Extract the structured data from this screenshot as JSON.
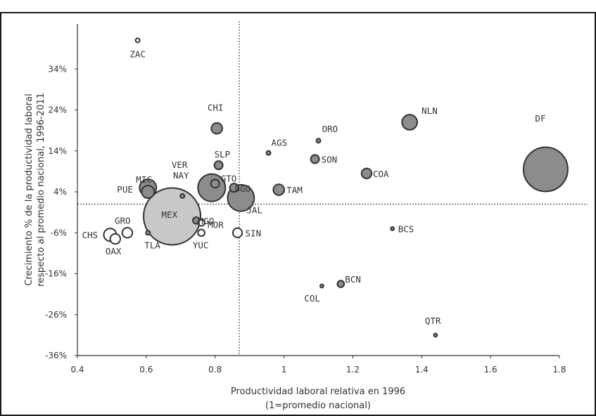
{
  "chart_data": {
    "type": "scatter",
    "title": "",
    "xlabel": [
      "Productividad laboral relativa en 1996",
      "(1=promedio nacional)"
    ],
    "ylabel": [
      "Crecimiento % de la productividad laboral",
      "respecto al promedio nacional, 1996-2011"
    ],
    "xlim": [
      0.4,
      1.8
    ],
    "ylim": [
      -36,
      44
    ],
    "x_ticks": [
      {
        "value": 0.4,
        "label": "0.4"
      },
      {
        "value": 0.6,
        "label": "0.6"
      },
      {
        "value": 0.8,
        "label": "0.8"
      },
      {
        "value": 1.0,
        "label": "1"
      },
      {
        "value": 1.2,
        "label": "1.2"
      },
      {
        "value": 1.4,
        "label": "1.4"
      },
      {
        "value": 1.6,
        "label": "1.6"
      },
      {
        "value": 1.8,
        "label": "1.8"
      }
    ],
    "y_ticks": [
      {
        "value": 34,
        "label": "34%"
      },
      {
        "value": 24,
        "label": "24%"
      },
      {
        "value": 14,
        "label": "14%"
      },
      {
        "value": 4,
        "label": "4%"
      },
      {
        "value": -6,
        "label": "-6%"
      },
      {
        "value": -16,
        "label": "-16%"
      },
      {
        "value": -26,
        "label": "-26%"
      },
      {
        "value": -36,
        "label": "-36%"
      }
    ],
    "reference_lines": {
      "x": 0.87,
      "y": 1.0
    },
    "colors": {
      "fill": "#8c8c8c",
      "light_fill": "#c8c8c8",
      "outline": "#333333",
      "ref": "#555555"
    },
    "points": [
      {
        "label": "ZAC",
        "x": 0.575,
        "y": 41.0,
        "size": 1,
        "style": "hollow"
      },
      {
        "label": "CHI",
        "x": 0.805,
        "y": 19.5,
        "size": 2.6
      },
      {
        "label": "NLN",
        "x": 1.365,
        "y": 21.0,
        "size": 3.6
      },
      {
        "label": "ORO",
        "x": 1.1,
        "y": 16.5,
        "size": 1
      },
      {
        "label": "AGS",
        "x": 0.955,
        "y": 13.5,
        "size": 1
      },
      {
        "label": "SON",
        "x": 1.09,
        "y": 12.0,
        "size": 2
      },
      {
        "label": "SLP",
        "x": 0.81,
        "y": 10.5,
        "size": 2
      },
      {
        "label": "COA",
        "x": 1.24,
        "y": 8.5,
        "size": 2.4
      },
      {
        "label": "DF",
        "x": 1.76,
        "y": 9.5,
        "size": 10.5
      },
      {
        "label": "MIC",
        "x": 0.605,
        "y": 5.0,
        "size": 4
      },
      {
        "label": "PUE",
        "x": 0.605,
        "y": 4.0,
        "size": 3
      },
      {
        "label": "VER",
        "x": 0.79,
        "y": 5.0,
        "size": 6.5
      },
      {
        "label": "GTO",
        "x": 0.8,
        "y": 6.0,
        "size": 2
      },
      {
        "label": "DGO",
        "x": 0.855,
        "y": 5.0,
        "size": 2
      },
      {
        "label": "JAL",
        "x": 0.875,
        "y": 2.5,
        "size": 6.3
      },
      {
        "label": "TAM",
        "x": 0.985,
        "y": 4.5,
        "size": 2.6
      },
      {
        "label": "NAY",
        "x": 0.705,
        "y": 3.0,
        "size": 1
      },
      {
        "label": "MEX",
        "x": 0.675,
        "y": -2.0,
        "size": 13.5,
        "style": "light"
      },
      {
        "label": "HGO",
        "x": 0.745,
        "y": -3.0,
        "size": 1.6
      },
      {
        "label": "MOR",
        "x": 0.76,
        "y": -3.5,
        "size": 1.6,
        "style": "hollow"
      },
      {
        "label": "YUC",
        "x": 0.76,
        "y": -6.0,
        "size": 1.6,
        "style": "hollow"
      },
      {
        "label": "SIN",
        "x": 0.865,
        "y": -6.0,
        "size": 2.2,
        "style": "hollow"
      },
      {
        "label": "CHS",
        "x": 0.495,
        "y": -6.5,
        "size": 3,
        "style": "hollow"
      },
      {
        "label": "GRO",
        "x": 0.545,
        "y": -6.0,
        "size": 2.4,
        "style": "hollow"
      },
      {
        "label": "OAX",
        "x": 0.51,
        "y": -7.5,
        "size": 2.4,
        "style": "hollow"
      },
      {
        "label": "TLA",
        "x": 0.605,
        "y": -6.0,
        "size": 1
      },
      {
        "label": "BCS",
        "x": 1.315,
        "y": -5.0,
        "size": 0.8
      },
      {
        "label": "BCN",
        "x": 1.165,
        "y": -18.5,
        "size": 1.6
      },
      {
        "label": "COL",
        "x": 1.11,
        "y": -19.0,
        "size": 0.8
      },
      {
        "label": "QTR",
        "x": 1.44,
        "y": -31.0,
        "size": 0.8
      }
    ]
  }
}
